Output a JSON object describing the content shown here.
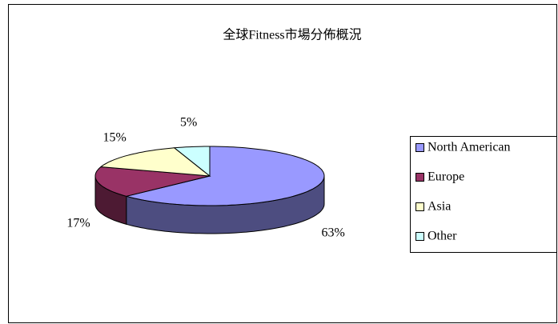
{
  "chart_data": {
    "type": "pie",
    "title": "全球Fitness市場分佈概況",
    "categories": [
      "North American",
      "Europe",
      "Asia",
      "Other"
    ],
    "values": [
      63,
      17,
      15,
      5
    ],
    "value_labels": [
      "63%",
      "17%",
      "15%",
      "5%"
    ],
    "colors": [
      "#9999ff",
      "#993366",
      "#ffffcc",
      "#ccffff"
    ],
    "legend": "right"
  }
}
